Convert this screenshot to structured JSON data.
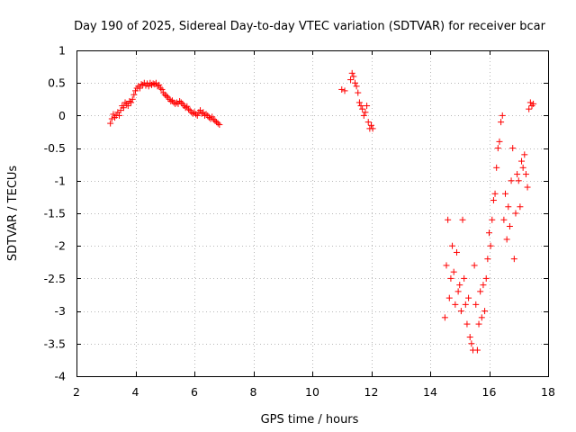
{
  "chart_data": {
    "type": "scatter",
    "title": "Day 190 of 2025, Sidereal Day-to-day VTEC variation (SDTVAR) for receiver bcar",
    "xlabel": "GPS time / hours",
    "ylabel": "SDTVAR / TECUs",
    "xlim": [
      2,
      18
    ],
    "ylim": [
      -4,
      1
    ],
    "xticks": [
      2,
      4,
      6,
      8,
      10,
      12,
      14,
      16,
      18
    ],
    "yticks": [
      1,
      0.5,
      0,
      -0.5,
      -1,
      -1.5,
      -2,
      -2.5,
      -3,
      -3.5,
      -4
    ],
    "grid": true,
    "marker": "plus",
    "color": "#ff0000",
    "series": [
      {
        "name": "SDTVAR",
        "x": [
          3.15,
          3.2,
          3.25,
          3.3,
          3.35,
          3.4,
          3.45,
          3.5,
          3.55,
          3.6,
          3.65,
          3.7,
          3.75,
          3.8,
          3.85,
          3.9,
          3.95,
          4.0,
          4.05,
          4.1,
          4.15,
          4.2,
          4.25,
          4.3,
          4.35,
          4.4,
          4.45,
          4.5,
          4.55,
          4.6,
          4.65,
          4.7,
          4.75,
          4.8,
          4.85,
          4.9,
          4.95,
          5.0,
          5.05,
          5.1,
          5.15,
          5.2,
          5.25,
          5.3,
          5.35,
          5.4,
          5.45,
          5.5,
          5.55,
          5.6,
          5.65,
          5.7,
          5.75,
          5.8,
          5.85,
          5.9,
          5.95,
          6.0,
          6.05,
          6.1,
          6.15,
          6.2,
          6.25,
          6.3,
          6.35,
          6.4,
          6.45,
          6.5,
          6.55,
          6.6,
          6.65,
          6.7,
          6.75,
          6.8,
          6.85,
          11.0,
          11.1,
          11.3,
          11.35,
          11.4,
          11.45,
          11.5,
          11.55,
          11.6,
          11.65,
          11.7,
          11.75,
          11.8,
          11.85,
          11.9,
          11.95,
          12.0,
          12.05,
          14.5,
          14.55,
          14.6,
          14.65,
          14.7,
          14.75,
          14.8,
          14.85,
          14.9,
          14.95,
          15.0,
          15.05,
          15.1,
          15.15,
          15.2,
          15.25,
          15.3,
          15.35,
          15.4,
          15.45,
          15.5,
          15.55,
          15.6,
          15.65,
          15.7,
          15.75,
          15.8,
          15.85,
          15.9,
          15.95,
          16.0,
          16.05,
          16.1,
          16.15,
          16.2,
          16.25,
          16.3,
          16.35,
          16.4,
          16.45,
          16.5,
          16.55,
          16.6,
          16.65,
          16.7,
          16.75,
          16.8,
          16.85,
          16.9,
          16.95,
          17.0,
          17.05,
          17.1,
          17.15,
          17.2,
          17.25,
          17.3,
          17.35,
          17.4,
          17.45,
          17.5
        ],
        "y": [
          -0.12,
          -0.05,
          0.02,
          -0.03,
          0.0,
          0.05,
          0.0,
          0.08,
          0.15,
          0.12,
          0.2,
          0.18,
          0.15,
          0.22,
          0.2,
          0.25,
          0.32,
          0.38,
          0.42,
          0.45,
          0.42,
          0.48,
          0.47,
          0.5,
          0.46,
          0.49,
          0.45,
          0.5,
          0.47,
          0.49,
          0.48,
          0.5,
          0.45,
          0.47,
          0.42,
          0.4,
          0.35,
          0.32,
          0.3,
          0.28,
          0.25,
          0.22,
          0.23,
          0.2,
          0.18,
          0.2,
          0.18,
          0.22,
          0.2,
          0.18,
          0.15,
          0.12,
          0.14,
          0.1,
          0.08,
          0.05,
          0.03,
          0.05,
          0.02,
          0.0,
          0.05,
          0.08,
          0.03,
          0.05,
          0.0,
          0.02,
          0.0,
          -0.03,
          -0.05,
          -0.02,
          -0.06,
          -0.08,
          -0.1,
          -0.12,
          -0.14,
          0.4,
          0.38,
          0.55,
          0.65,
          0.6,
          0.5,
          0.45,
          0.35,
          0.2,
          0.15,
          0.1,
          0.0,
          0.05,
          0.15,
          -0.1,
          -0.2,
          -0.15,
          -0.2,
          -3.1,
          -2.3,
          -1.6,
          -2.8,
          -2.5,
          -2.0,
          -2.4,
          -2.9,
          -2.1,
          -2.7,
          -2.6,
          -3.0,
          -1.6,
          -2.5,
          -2.9,
          -3.2,
          -2.8,
          -3.4,
          -3.5,
          -3.6,
          -2.3,
          -2.9,
          -3.6,
          -3.2,
          -2.7,
          -3.1,
          -2.6,
          -3.0,
          -2.5,
          -2.2,
          -1.8,
          -2.0,
          -1.6,
          -1.3,
          -1.2,
          -0.8,
          -0.5,
          -0.4,
          -0.1,
          0.0,
          -1.6,
          -1.2,
          -1.9,
          -1.4,
          -1.7,
          -1.0,
          -0.5,
          -2.2,
          -1.5,
          -0.9,
          -1.0,
          -1.4,
          -0.7,
          -0.8,
          -0.6,
          -0.9,
          -1.1,
          0.1,
          0.2,
          0.15,
          0.18
        ]
      }
    ]
  }
}
